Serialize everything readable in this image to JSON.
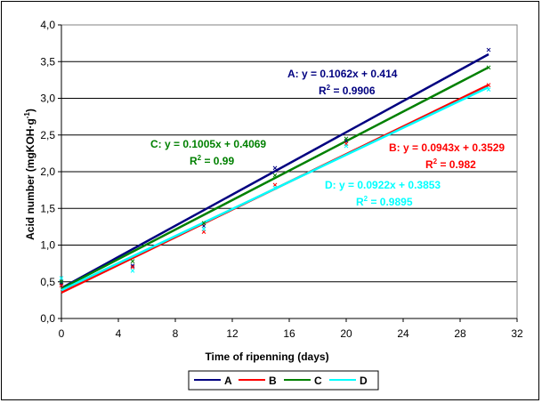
{
  "chart_data": {
    "type": "line",
    "title": "",
    "xlabel": "Time of ripenning (days)",
    "ylabel_main": "Acid number (mgKOH·g",
    "ylabel_sup": "-1",
    "ylabel_close": ")",
    "xlim": [
      0,
      32
    ],
    "ylim": [
      0,
      4
    ],
    "x_ticks": [
      "0",
      "4",
      "8",
      "12",
      "16",
      "20",
      "24",
      "28",
      "32"
    ],
    "y_ticks": [
      "0,0",
      "0,5",
      "1,0",
      "1,5",
      "2,0",
      "2,5",
      "3,0",
      "3,5",
      "4,0"
    ],
    "grid": "horizontal",
    "legend_position": "bottom",
    "series": [
      {
        "name": "A",
        "color": "#000080",
        "slope": 0.1062,
        "intercept": 0.414,
        "x": [
          0,
          5,
          10,
          15,
          20,
          30
        ],
        "points": [
          0.48,
          0.72,
          1.26,
          2.05,
          2.42,
          3.66
        ],
        "equation": "A: y = 0.1062x + 0.414",
        "r2_label": "R",
        "r2_sup": "2",
        "r2_value": " = 0.9906"
      },
      {
        "name": "B",
        "color": "#FF0000",
        "slope": 0.0943,
        "intercept": 0.3529,
        "x": [
          0,
          5,
          10,
          15,
          20,
          30
        ],
        "points": [
          0.45,
          0.7,
          1.18,
          1.82,
          2.38,
          3.18
        ],
        "equation": "B: y = 0.0943x + 0.3529",
        "r2_label": "R",
        "r2_sup": "2",
        "r2_value": " = 0.982"
      },
      {
        "name": "C",
        "color": "#008000",
        "slope": 0.1005,
        "intercept": 0.4069,
        "x": [
          0,
          5,
          10,
          15,
          20,
          30
        ],
        "points": [
          0.5,
          0.78,
          1.3,
          1.95,
          2.45,
          3.42
        ],
        "equation": "C: y = 0.1005x + 0.4069",
        "r2_label": "R",
        "r2_sup": "2",
        "r2_value": " = 0.99"
      },
      {
        "name": "D",
        "color": "#00FFFF",
        "slope": 0.0922,
        "intercept": 0.3853,
        "x": [
          0,
          5,
          10,
          15,
          20,
          30
        ],
        "points": [
          0.55,
          0.65,
          1.22,
          1.78,
          2.35,
          3.12
        ],
        "equation": "D: y = 0.0922x + 0.3853",
        "r2_label": "R",
        "r2_sup": "2",
        "r2_value": " = 0.9895"
      }
    ]
  }
}
